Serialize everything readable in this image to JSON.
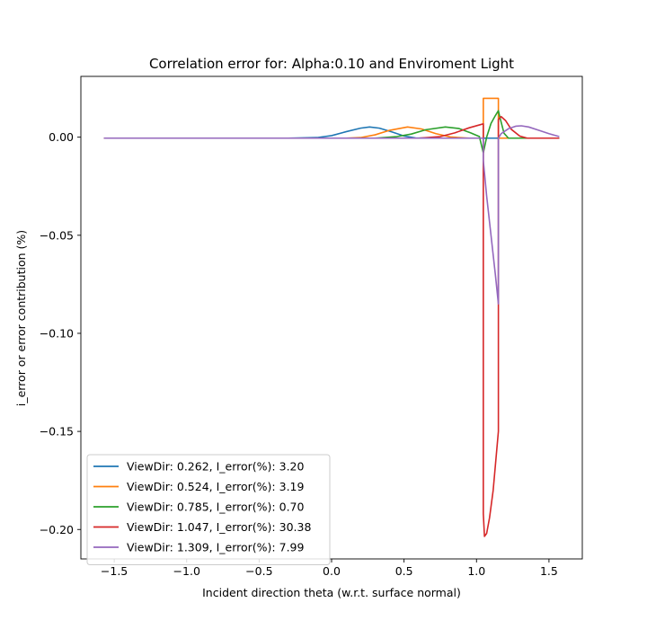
{
  "chart_data": {
    "type": "line",
    "title": "Correlation error for: Alpha:0.10 and Enviroment Light",
    "xlabel": "Incident direction theta (w.r.t. surface normal)",
    "ylabel": "i_error or error contribution (%)",
    "xlim": [
      -1.73,
      1.73
    ],
    "ylim": [
      -0.215,
      0.031
    ],
    "x_ticks": [
      -1.5,
      -1.0,
      -0.5,
      0.0,
      0.5,
      1.0,
      1.5
    ],
    "x_tick_labels": [
      "−1.5",
      "−1.0",
      "−0.5",
      "0.0",
      "0.5",
      "1.0",
      "1.5"
    ],
    "y_ticks": [
      0.0,
      -0.05,
      -0.1,
      -0.15,
      -0.2
    ],
    "y_tick_labels": [
      "0.00",
      "−0.05",
      "−0.10",
      "−0.15",
      "−0.20"
    ],
    "grid": false,
    "legend_position": "lower-left",
    "series": [
      {
        "name": "ViewDir: 0.262, I_error(%): 3.20",
        "color": "#1f77b4",
        "points": [
          [
            -1.571,
            -0.0005
          ],
          [
            -0.3,
            -0.0005
          ],
          [
            -0.1,
            -0.0002
          ],
          [
            0.0,
            0.0008
          ],
          [
            0.1,
            0.0028
          ],
          [
            0.2,
            0.0046
          ],
          [
            0.262,
            0.0052
          ],
          [
            0.33,
            0.0046
          ],
          [
            0.42,
            0.0026
          ],
          [
            0.5,
            0.0006
          ],
          [
            0.58,
            -0.0004
          ],
          [
            0.7,
            -0.0005
          ],
          [
            1.571,
            -0.0005
          ]
        ]
      },
      {
        "name": "ViewDir: 0.524, I_error(%): 3.19",
        "color": "#ff7f0e",
        "points": [
          [
            -1.571,
            -0.0005
          ],
          [
            0.1,
            -0.0005
          ],
          [
            0.2,
            -0.0002
          ],
          [
            0.3,
            0.0012
          ],
          [
            0.4,
            0.0035
          ],
          [
            0.524,
            0.0052
          ],
          [
            0.62,
            0.0042
          ],
          [
            0.72,
            0.0018
          ],
          [
            0.82,
            0.0001
          ],
          [
            0.95,
            -0.0005
          ],
          [
            1.047,
            -0.0005
          ],
          [
            1.047,
            0.0198
          ],
          [
            1.151,
            0.0198
          ],
          [
            1.151,
            -0.0005
          ],
          [
            1.571,
            -0.0005
          ]
        ]
      },
      {
        "name": "ViewDir: 0.785, I_error(%): 0.70",
        "color": "#2ca02c",
        "points": [
          [
            -1.571,
            -0.0005
          ],
          [
            0.3,
            -0.0005
          ],
          [
            0.45,
            0.0003
          ],
          [
            0.55,
            0.0016
          ],
          [
            0.65,
            0.0038
          ],
          [
            0.785,
            0.0052
          ],
          [
            0.88,
            0.0044
          ],
          [
            0.96,
            0.0022
          ],
          [
            1.02,
            0.0003
          ],
          [
            1.047,
            -0.008
          ],
          [
            1.07,
            0.0
          ],
          [
            1.1,
            0.007
          ],
          [
            1.13,
            0.011
          ],
          [
            1.151,
            0.0135
          ],
          [
            1.16,
            0.0105
          ],
          [
            1.19,
            0.002
          ],
          [
            1.22,
            -0.0005
          ],
          [
            1.571,
            -0.0005
          ]
        ]
      },
      {
        "name": "ViewDir: 1.047, I_error(%): 30.38",
        "color": "#d62728",
        "points": [
          [
            -1.571,
            -0.0005
          ],
          [
            0.6,
            -0.0005
          ],
          [
            0.75,
            0.0003
          ],
          [
            0.85,
            0.0022
          ],
          [
            0.95,
            0.0048
          ],
          [
            1.047,
            0.0068
          ],
          [
            1.047,
            -0.192
          ],
          [
            1.055,
            -0.2035
          ],
          [
            1.07,
            -0.202
          ],
          [
            1.09,
            -0.194
          ],
          [
            1.115,
            -0.18
          ],
          [
            1.151,
            -0.15
          ],
          [
            1.151,
            0.009
          ],
          [
            1.17,
            0.0105
          ],
          [
            1.2,
            0.0085
          ],
          [
            1.24,
            0.004
          ],
          [
            1.3,
            0.0005
          ],
          [
            1.35,
            -0.0005
          ],
          [
            1.571,
            -0.0005
          ]
        ]
      },
      {
        "name": "ViewDir: 1.309, I_error(%): 7.99",
        "color": "#9467bd",
        "points": [
          [
            -1.571,
            -0.0005
          ],
          [
            0.8,
            -0.0005
          ],
          [
            1.0,
            -0.0005
          ],
          [
            1.047,
            -0.0005
          ],
          [
            1.047,
            -0.012
          ],
          [
            1.07,
            -0.03
          ],
          [
            1.1,
            -0.05
          ],
          [
            1.13,
            -0.07
          ],
          [
            1.151,
            -0.085
          ],
          [
            1.151,
            -0.0005
          ],
          [
            1.17,
            0.0018
          ],
          [
            1.22,
            0.0043
          ],
          [
            1.27,
            0.0056
          ],
          [
            1.309,
            0.0058
          ],
          [
            1.36,
            0.0052
          ],
          [
            1.43,
            0.0035
          ],
          [
            1.5,
            0.0018
          ],
          [
            1.571,
            0.0003
          ]
        ]
      }
    ]
  }
}
